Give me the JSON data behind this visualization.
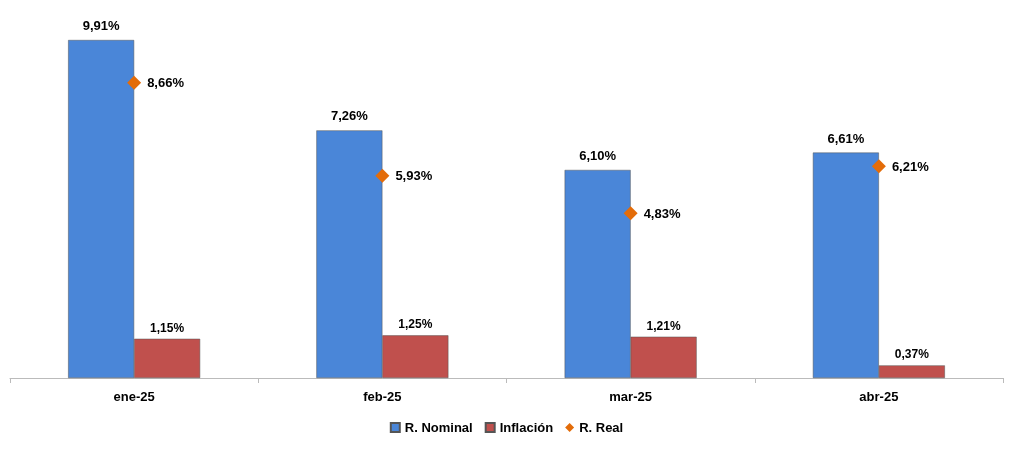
{
  "chart_data": {
    "type": "bar",
    "categories": [
      "ene-25",
      "feb-25",
      "mar-25",
      "abr-25"
    ],
    "legend": "bottom",
    "grid": false,
    "series": [
      {
        "name": "R. Nominal",
        "color": "#4a86d8",
        "values": [
          9.91,
          7.26,
          6.1,
          6.61
        ],
        "value_labels": [
          "9,91%",
          "7,26%",
          "6,10%",
          "6,61%"
        ]
      },
      {
        "name": "Inflación",
        "color": "#c0504d",
        "values": [
          1.15,
          1.25,
          1.21,
          0.37
        ],
        "value_labels": [
          "1,15%",
          "1,25%",
          "1,21%",
          "0,37%"
        ]
      },
      {
        "name": "R. Real",
        "type": "scatter",
        "marker": "diamond",
        "color": "#e36c09",
        "values": [
          8.66,
          5.93,
          4.83,
          6.21
        ],
        "value_labels": [
          "8,66%",
          "5,93%",
          "4,83%",
          "6,21%"
        ]
      }
    ]
  }
}
